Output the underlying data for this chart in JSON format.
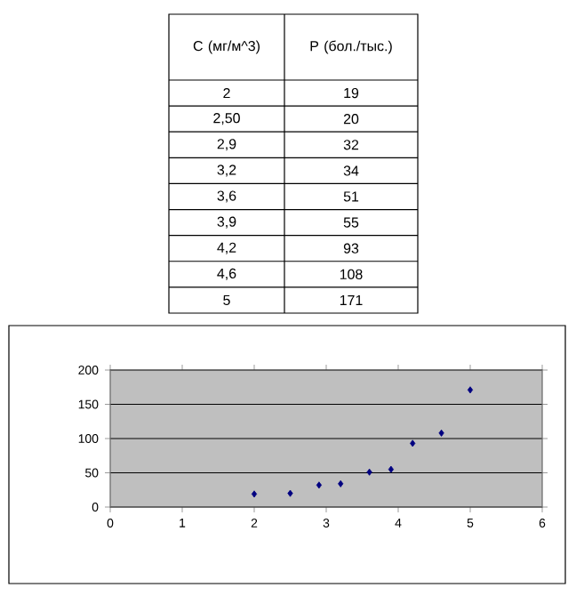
{
  "chart_data": [
    {
      "type": "other",
      "annotations": [
        "C (мг/м^3)",
        "P (бол./тыс.)",
        "2",
        "19",
        "2,50",
        "20",
        "2,9",
        "32",
        "3,2",
        "34",
        "3,6",
        "51",
        "3,9",
        "55",
        "4,2",
        "93",
        "4,6",
        "108",
        "5",
        "171"
      ]
    },
    {
      "type": "scatter",
      "x": [
        2,
        2.5,
        2.9,
        3.2,
        3.6,
        3.9,
        4.2,
        4.6,
        5
      ],
      "values": [
        19,
        20,
        32,
        34,
        51,
        55,
        93,
        108,
        171
      ],
      "color": "#000080",
      "marker": "diamond",
      "grid": "y",
      "xlim": [
        0,
        6
      ],
      "xticks": [
        0,
        1,
        2,
        3,
        4,
        5,
        6
      ],
      "ylim": [
        0,
        200
      ],
      "yticks": [
        0,
        50,
        100,
        150,
        200
      ]
    }
  ]
}
